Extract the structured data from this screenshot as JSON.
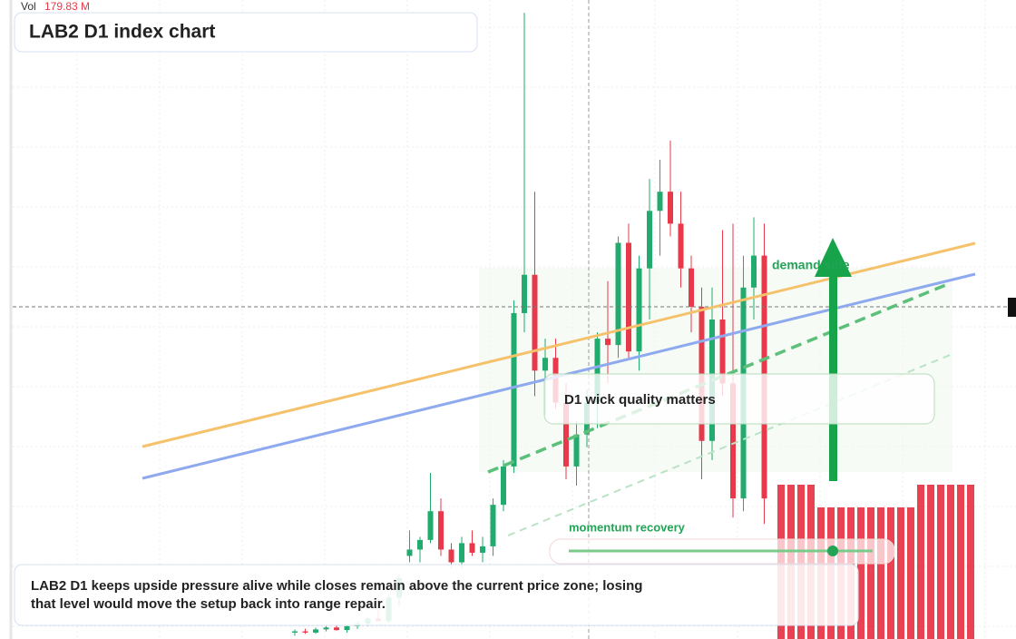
{
  "chart_data": {
    "type": "candlestick",
    "title": "LAB2 D1 index chart",
    "volume_label": "Vol",
    "volume_value": "179.83 M",
    "annotations": [
      "demand side",
      "D1 wick quality matters",
      "momentum recovery"
    ],
    "note": "LAB2 D1 keeps upside pressure alive while closes remain above the current price zone; losing that level would move the setup back into range repair.",
    "up_color": "#22ab6e",
    "down_color": "#e8394a",
    "ylim": [
      0,
      100
    ],
    "candles": [
      [
        1,
        1.5,
        0.5,
        1.2
      ],
      [
        1.2,
        1.6,
        0.8,
        1
      ],
      [
        1,
        1.8,
        0.8,
        1.5
      ],
      [
        1.5,
        2,
        1.2,
        1.8
      ],
      [
        1.8,
        2.4,
        1.3,
        1.4
      ],
      [
        1.4,
        2.2,
        1,
        2
      ],
      [
        2,
        2.8,
        1.6,
        2.4
      ],
      [
        2.4,
        3.5,
        2,
        3.2
      ],
      [
        3.2,
        4.5,
        2.8,
        2.8
      ],
      [
        2.8,
        7,
        2.5,
        6.5
      ],
      [
        6.5,
        10,
        5,
        9.5
      ],
      [
        13,
        17,
        12,
        14
      ],
      [
        14,
        16,
        12,
        15.5
      ],
      [
        15.5,
        26,
        15,
        20
      ],
      [
        20,
        22,
        13,
        14
      ],
      [
        14,
        15,
        11,
        12
      ],
      [
        12,
        16,
        11,
        15
      ],
      [
        15,
        17,
        13,
        13.5
      ],
      [
        13.5,
        16,
        12,
        14.5
      ],
      [
        14.5,
        22,
        13,
        21
      ],
      [
        21,
        28,
        20,
        27
      ],
      [
        27,
        53,
        26,
        51
      ],
      [
        51,
        98,
        48,
        57
      ],
      [
        57,
        70,
        38,
        42
      ],
      [
        42,
        47,
        35,
        44
      ],
      [
        44,
        47,
        36,
        37
      ],
      [
        37,
        40,
        25,
        27
      ],
      [
        27,
        34,
        24,
        32
      ],
      [
        32,
        39,
        30,
        37
      ],
      [
        37,
        48,
        33,
        47
      ],
      [
        47,
        56,
        40,
        46
      ],
      [
        46,
        63,
        44,
        62
      ],
      [
        62,
        65,
        44,
        45
      ],
      [
        45,
        60,
        42,
        58
      ],
      [
        58,
        72,
        50,
        67
      ],
      [
        67,
        75,
        60,
        70
      ],
      [
        70,
        78,
        63,
        65
      ],
      [
        65,
        70,
        55,
        58
      ],
      [
        58,
        60,
        48,
        52
      ],
      [
        52,
        55,
        25,
        31
      ],
      [
        31,
        55,
        28,
        50
      ],
      [
        50,
        64,
        38,
        40
      ],
      [
        40,
        65,
        19,
        22
      ],
      [
        22,
        60,
        20,
        55
      ],
      [
        55,
        66,
        50,
        60
      ],
      [
        60,
        65,
        18,
        22
      ]
    ],
    "y2lim": [
      0,
      180
    ],
    "volume": [
      170,
      170,
      170,
      170,
      145,
      145,
      145,
      145,
      145,
      145,
      145,
      145,
      145,
      145,
      170,
      170,
      170,
      170,
      170,
      170
    ]
  }
}
